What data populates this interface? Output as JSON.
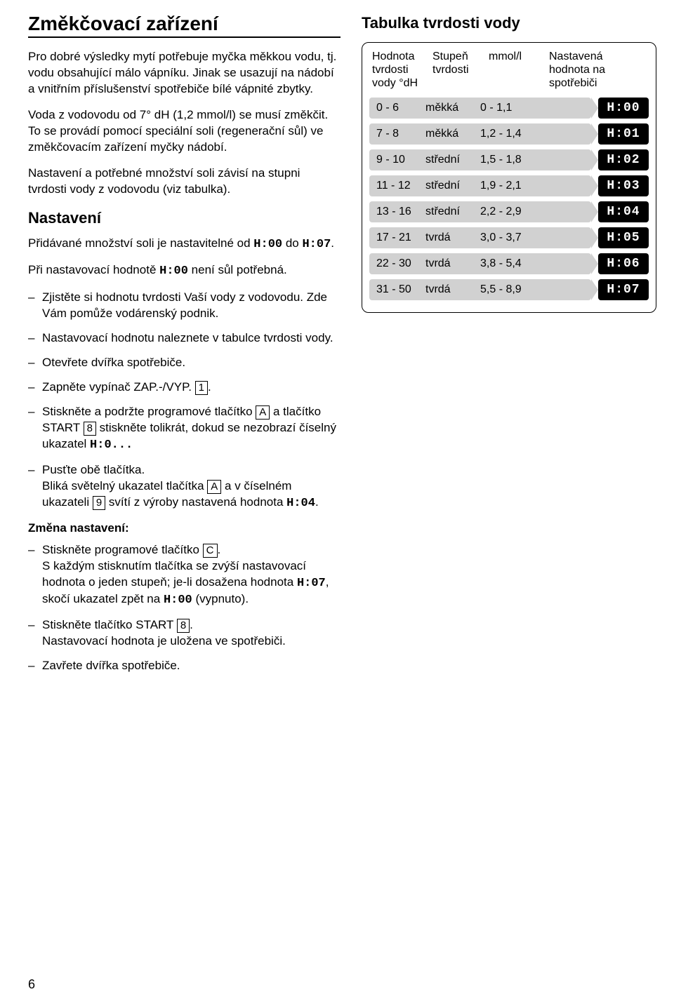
{
  "left": {
    "title": "Změkčovací zařízení",
    "p1": "Pro dobré výsledky mytí potřebuje myčka měkkou vodu, tj. vodu obsahující málo vápníku. Jinak se usazují na nádobí a vnitřním příslušenství spotřebiče bílé vápnité zbytky.",
    "p2": "Voda z vodovodu od 7° dH (1,2 mmol/l) se musí změkčit. To se provádí pomocí speciální soli (regenerační sůl) ve změkčovacím zařízení myčky nádobí.",
    "p3": "Nastavení a potřebné množství soli závisí na stupni tvrdosti vody z vodovodu (viz tabulka).",
    "h2_setting": "Nastavení",
    "p4_a": "Přidávané množství soli je nastavitelné od ",
    "p4_seg1": "H:00",
    "p4_b": " do ",
    "p4_seg2": "H:07",
    "p4_c": ".",
    "p5_a": "Při nastavovací hodnotě ",
    "p5_seg": "H:00",
    "p5_b": " není sůl potřebná.",
    "step1": "Zjistěte si hodnotu tvrdosti Vaší vody z vodovodu. Zde Vám pomůže vodárenský podnik.",
    "step2": "Nastavovací hodnotu naleznete v tabulce tvrdosti vody.",
    "step3": "Otevřete dvířka spotřebiče.",
    "step4_a": "Zapněte vypínač ZAP.-/VYP. ",
    "step4_box": "1",
    "step4_b": ".",
    "step5_a": "Stiskněte a podržte programové tlačítko ",
    "step5_boxA": "A",
    "step5_b": " a tlačítko START ",
    "step5_box8": "8",
    "step5_c": " stiskněte tolikrát, dokud se nezobrazí číselný ukazatel ",
    "step5_seg": "H:0...",
    "step6_a": "Pusťte obě tlačítka.",
    "step6_b": "Bliká světelný ukazatel tlačítka ",
    "step6_boxA": "A",
    "step6_c": " a v číselném ukazateli ",
    "step6_box9": "9",
    "step6_d": " svítí z výroby nastavená hodnota ",
    "step6_seg": "H:04",
    "step6_e": ".",
    "h3_change": "Změna nastavení:",
    "ch1_a": "Stiskněte programové tlačítko ",
    "ch1_boxC": "C",
    "ch1_b": ".",
    "ch1_c": "S každým stisknutím tlačítka se zvýší nastavovací hodnota o jeden stupeň; je-li dosažena hodnota ",
    "ch1_seg1": "H:07",
    "ch1_d": ", skočí ukazatel zpět na ",
    "ch1_seg2": "H:00",
    "ch1_e": " (vypnuto).",
    "ch2_a": "Stiskněte tlačítko START ",
    "ch2_box8": "8",
    "ch2_b": ".",
    "ch2_c": "Nastavovací hodnota je uložena ve spotřebiči.",
    "ch3": "Zavřete dvířka spotřebiče."
  },
  "right": {
    "title": "Tabulka tvrdosti vody",
    "head": {
      "c1": "Hodnota tvrdosti vody °dH",
      "c2": "Stupeň tvrdosti",
      "c3": "mmol/l",
      "c4": "Nastavená hodnota na spotřebiči"
    },
    "rows": [
      {
        "dh": "0 - 6",
        "deg": "měkká",
        "mmol": "0 - 1,1",
        "set": "H:00"
      },
      {
        "dh": "7 - 8",
        "deg": "měkká",
        "mmol": "1,2 - 1,4",
        "set": "H:01"
      },
      {
        "dh": "9 - 10",
        "deg": "střední",
        "mmol": "1,5 - 1,8",
        "set": "H:02"
      },
      {
        "dh": "11 - 12",
        "deg": "střední",
        "mmol": "1,9 - 2,1",
        "set": "H:03"
      },
      {
        "dh": "13 - 16",
        "deg": "střední",
        "mmol": "2,2 - 2,9",
        "set": "H:04"
      },
      {
        "dh": "17 - 21",
        "deg": "tvrdá",
        "mmol": "3,0 - 3,7",
        "set": "H:05"
      },
      {
        "dh": "22 - 30",
        "deg": "tvrdá",
        "mmol": "3,8 - 5,4",
        "set": "H:06"
      },
      {
        "dh": "31 - 50",
        "deg": "tvrdá",
        "mmol": "5,5 - 8,9",
        "set": "H:07"
      }
    ]
  },
  "page_number": "6",
  "colors": {
    "pill_bg": "#d1d1d1",
    "lcd_bg": "#000000",
    "lcd_fg": "#ffffff",
    "text": "#000000",
    "page_bg": "#ffffff"
  }
}
